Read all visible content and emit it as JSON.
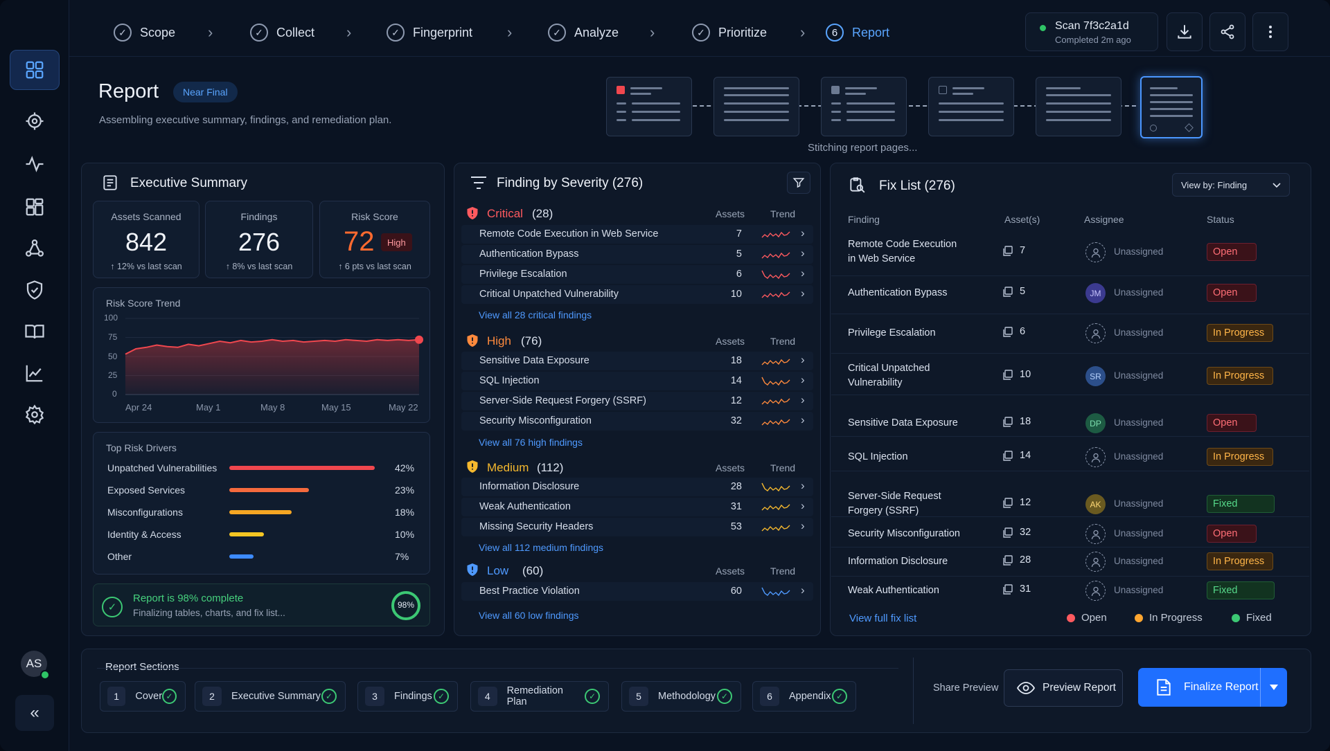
{
  "steps": [
    "Scope",
    "Collect",
    "Fingerprint",
    "Analyze",
    "Prioritize",
    "Report"
  ],
  "active_step_number": "6",
  "scan": {
    "id": "Scan 7f3c2a1d",
    "status": "Completed 2m ago"
  },
  "header": {
    "title": "Report",
    "badge": "Near Final",
    "subtitle": "Assembling executive summary, findings, and remediation plan.",
    "stitch_text": "Stitching report pages..."
  },
  "user": {
    "initials": "AS"
  },
  "exec": {
    "title": "Executive Summary",
    "cards": [
      {
        "label": "Assets Scanned",
        "value": "842",
        "sub": "↑ 12% vs last scan"
      },
      {
        "label": "Findings",
        "value": "276",
        "sub": "↑ 8% vs last scan"
      },
      {
        "label": "Risk Score",
        "value": "72",
        "badge": "High",
        "sub": "↑ 6 pts vs last scan"
      }
    ],
    "trend_title": "Risk Score Trend",
    "trend_ticks": [
      "100",
      "75",
      "50",
      "25",
      "0"
    ],
    "trend_dates": [
      "Apr 24",
      "May 1",
      "May 8",
      "May 15",
      "May 22"
    ],
    "drivers_title": "Top Risk Drivers",
    "drivers": [
      {
        "label": "Unpatched Vulnerabilities",
        "pct": "42%",
        "value": 42,
        "color": "#f0474e"
      },
      {
        "label": "Exposed Services",
        "pct": "23%",
        "value": 23,
        "color": "#f56a3d"
      },
      {
        "label": "Misconfigurations",
        "pct": "18%",
        "value": 18,
        "color": "#f5a623"
      },
      {
        "label": "Identity & Access",
        "pct": "10%",
        "value": 10,
        "color": "#f5c623"
      },
      {
        "label": "Other",
        "pct": "7%",
        "value": 7,
        "color": "#3d8bff"
      }
    ],
    "complete_title": "Report is 98% complete",
    "complete_sub": "Finalizing tables, charts, and fix list...",
    "complete_pct": "98%",
    "complete_value": 98
  },
  "chart_data": {
    "type": "area",
    "title": "Risk Score Trend",
    "ylim": [
      0,
      100
    ],
    "yticks": [
      0,
      25,
      50,
      75,
      100
    ],
    "x_labels": [
      "Apr 24",
      "May 1",
      "May 8",
      "May 15",
      "May 22"
    ],
    "values": [
      53,
      60,
      62,
      65,
      63,
      62,
      66,
      64,
      67,
      70,
      68,
      71,
      69,
      70,
      72,
      70,
      71,
      69,
      70,
      71,
      70,
      72,
      71,
      70,
      72,
      71,
      72,
      71,
      72
    ]
  },
  "severity": {
    "title": "Finding by Severity (276)",
    "col_assets": "Assets",
    "col_trend": "Trend",
    "groups": [
      {
        "name": "Critical",
        "count": "(28)",
        "color": "#ff5a5f",
        "link": "View all 28 critical findings",
        "items": [
          {
            "name": "Remote Code Execution in Web Service",
            "assets": "7"
          },
          {
            "name": "Authentication Bypass",
            "assets": "5"
          },
          {
            "name": "Privilege Escalation",
            "assets": "6"
          },
          {
            "name": "Critical Unpatched Vulnerability",
            "assets": "10"
          }
        ]
      },
      {
        "name": "High",
        "count": "(76)",
        "color": "#ff8a3d",
        "link": "View all 76 high findings",
        "items": [
          {
            "name": "Sensitive Data Exposure",
            "assets": "18"
          },
          {
            "name": "SQL Injection",
            "assets": "14"
          },
          {
            "name": "Server-Side Request Forgery (SSRF)",
            "assets": "12"
          },
          {
            "name": "Security Misconfiguration",
            "assets": "32"
          }
        ]
      },
      {
        "name": "Medium",
        "count": "(112)",
        "color": "#f5b82e",
        "link": "View all 112 medium findings",
        "items": [
          {
            "name": "Information Disclosure",
            "assets": "28"
          },
          {
            "name": "Weak Authentication",
            "assets": "31"
          },
          {
            "name": "Missing Security Headers",
            "assets": "53"
          }
        ]
      },
      {
        "name": "Low",
        "count": "(60)",
        "color": "#4f9aff",
        "link": "View all 60 low findings",
        "items": [
          {
            "name": "Best Practice Violation",
            "assets": "60"
          }
        ]
      }
    ]
  },
  "fixlist": {
    "title": "Fix List (276)",
    "view_by": "View by: Finding",
    "cols": [
      "Finding",
      "Asset(s)",
      "Assignee",
      "Status"
    ],
    "unassigned": "Unassigned",
    "rows": [
      {
        "name": "Remote Code Execution\nin Web Service",
        "assets": "7",
        "initials": "",
        "status": "Open"
      },
      {
        "name": "Authentication Bypass",
        "assets": "5",
        "initials": "JM",
        "status": "Open"
      },
      {
        "name": "Privilege Escalation",
        "assets": "6",
        "initials": "",
        "status": "In Progress"
      },
      {
        "name": "Critical Unpatched\nVulnerability",
        "assets": "10",
        "initials": "SR",
        "status": "In Progress"
      },
      {
        "name": "Sensitive Data Exposure",
        "assets": "18",
        "initials": "DP",
        "status": "Open"
      },
      {
        "name": "SQL Injection",
        "assets": "14",
        "initials": "",
        "status": "In Progress"
      },
      {
        "name": "Server-Side Request\nForgery (SSRF)",
        "assets": "12",
        "initials": "AK",
        "status": "Fixed"
      },
      {
        "name": "Security Misconfiguration",
        "assets": "32",
        "initials": "",
        "status": "Open"
      },
      {
        "name": "Information Disclosure",
        "assets": "28",
        "initials": "",
        "status": "In Progress"
      },
      {
        "name": "Weak Authentication",
        "assets": "31",
        "initials": "",
        "status": "Fixed"
      }
    ],
    "view_full": "View full fix list",
    "legend": [
      "Open",
      "In Progress",
      "Fixed"
    ]
  },
  "sections": {
    "title": "Report Sections",
    "items": [
      {
        "num": "1",
        "name": "Cover"
      },
      {
        "num": "2",
        "name": "Executive Summary"
      },
      {
        "num": "3",
        "name": "Findings"
      },
      {
        "num": "4",
        "name": "Remediation Plan"
      },
      {
        "num": "5",
        "name": "Methodology"
      },
      {
        "num": "6",
        "name": "Appendix"
      }
    ]
  },
  "actions": {
    "share": "Share Preview",
    "preview": "Preview Report",
    "finalize": "Finalize Report"
  }
}
